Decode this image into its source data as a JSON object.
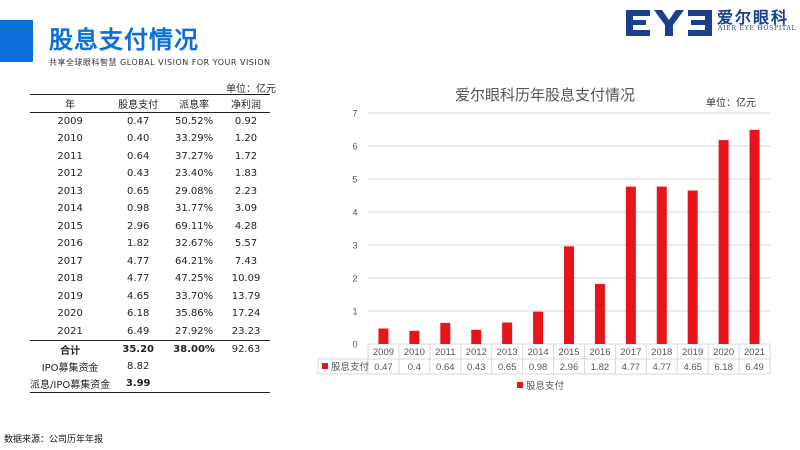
{
  "header": {
    "title": "股息支付情况",
    "subtitle": "共享全球眼科智慧 GLOBAL VISION FOR YOUR VISION"
  },
  "logo": {
    "chinese": "爱尔眼科",
    "english": "AIER EYE HOSPITAL",
    "color": "#1a3f8f"
  },
  "table": {
    "unit": "单位：亿元",
    "headers": [
      "年",
      "股息支付",
      "派息率",
      "净利润"
    ],
    "rows": [
      [
        "2009",
        "0.47",
        "50.52%",
        "0.92"
      ],
      [
        "2010",
        "0.40",
        "33.29%",
        "1.20"
      ],
      [
        "2011",
        "0.64",
        "37.27%",
        "1.72"
      ],
      [
        "2012",
        "0.43",
        "23.40%",
        "1.83"
      ],
      [
        "2013",
        "0.65",
        "29.08%",
        "2.23"
      ],
      [
        "2014",
        "0.98",
        "31.77%",
        "3.09"
      ],
      [
        "2015",
        "2.96",
        "69.11%",
        "4.28"
      ],
      [
        "2016",
        "1.82",
        "32.67%",
        "5.57"
      ],
      [
        "2017",
        "4.77",
        "64.21%",
        "7.43"
      ],
      [
        "2018",
        "4.77",
        "47.25%",
        "10.09"
      ],
      [
        "2019",
        "4.65",
        "33.70%",
        "13.79"
      ],
      [
        "2020",
        "6.18",
        "35.86%",
        "17.24"
      ],
      [
        "2021",
        "6.49",
        "27.92%",
        "23.23"
      ]
    ],
    "total": [
      "合计",
      "35.20",
      "38.00%",
      "92.63"
    ],
    "ipo": [
      "IPO募集资金",
      "8.82"
    ],
    "ratio": [
      "派息/IPO募集资金",
      "3.99"
    ]
  },
  "source": "数据来源：公司历年年报",
  "chart_data": {
    "type": "bar",
    "title": "爱尔眼科历年股息支付情况",
    "unit_label": "单位：亿元",
    "categories": [
      "2009",
      "2010",
      "2011",
      "2012",
      "2013",
      "2014",
      "2015",
      "2016",
      "2017",
      "2018",
      "2019",
      "2020",
      "2021"
    ],
    "series": [
      {
        "name": "股息支付",
        "values": [
          0.47,
          0.4,
          0.64,
          0.43,
          0.65,
          0.98,
          2.96,
          1.82,
          4.77,
          4.77,
          4.65,
          6.18,
          6.49
        ],
        "color": "#e8141b"
      }
    ],
    "ylim": [
      0,
      7
    ],
    "yticks": [
      0,
      1,
      2,
      3,
      4,
      5,
      6,
      7
    ],
    "grid": true,
    "data_table": true,
    "legend": "bottom"
  },
  "colors": {
    "accent": "#0a6fd6",
    "bar": "#e8141b",
    "grid": "#d9d9d9"
  }
}
